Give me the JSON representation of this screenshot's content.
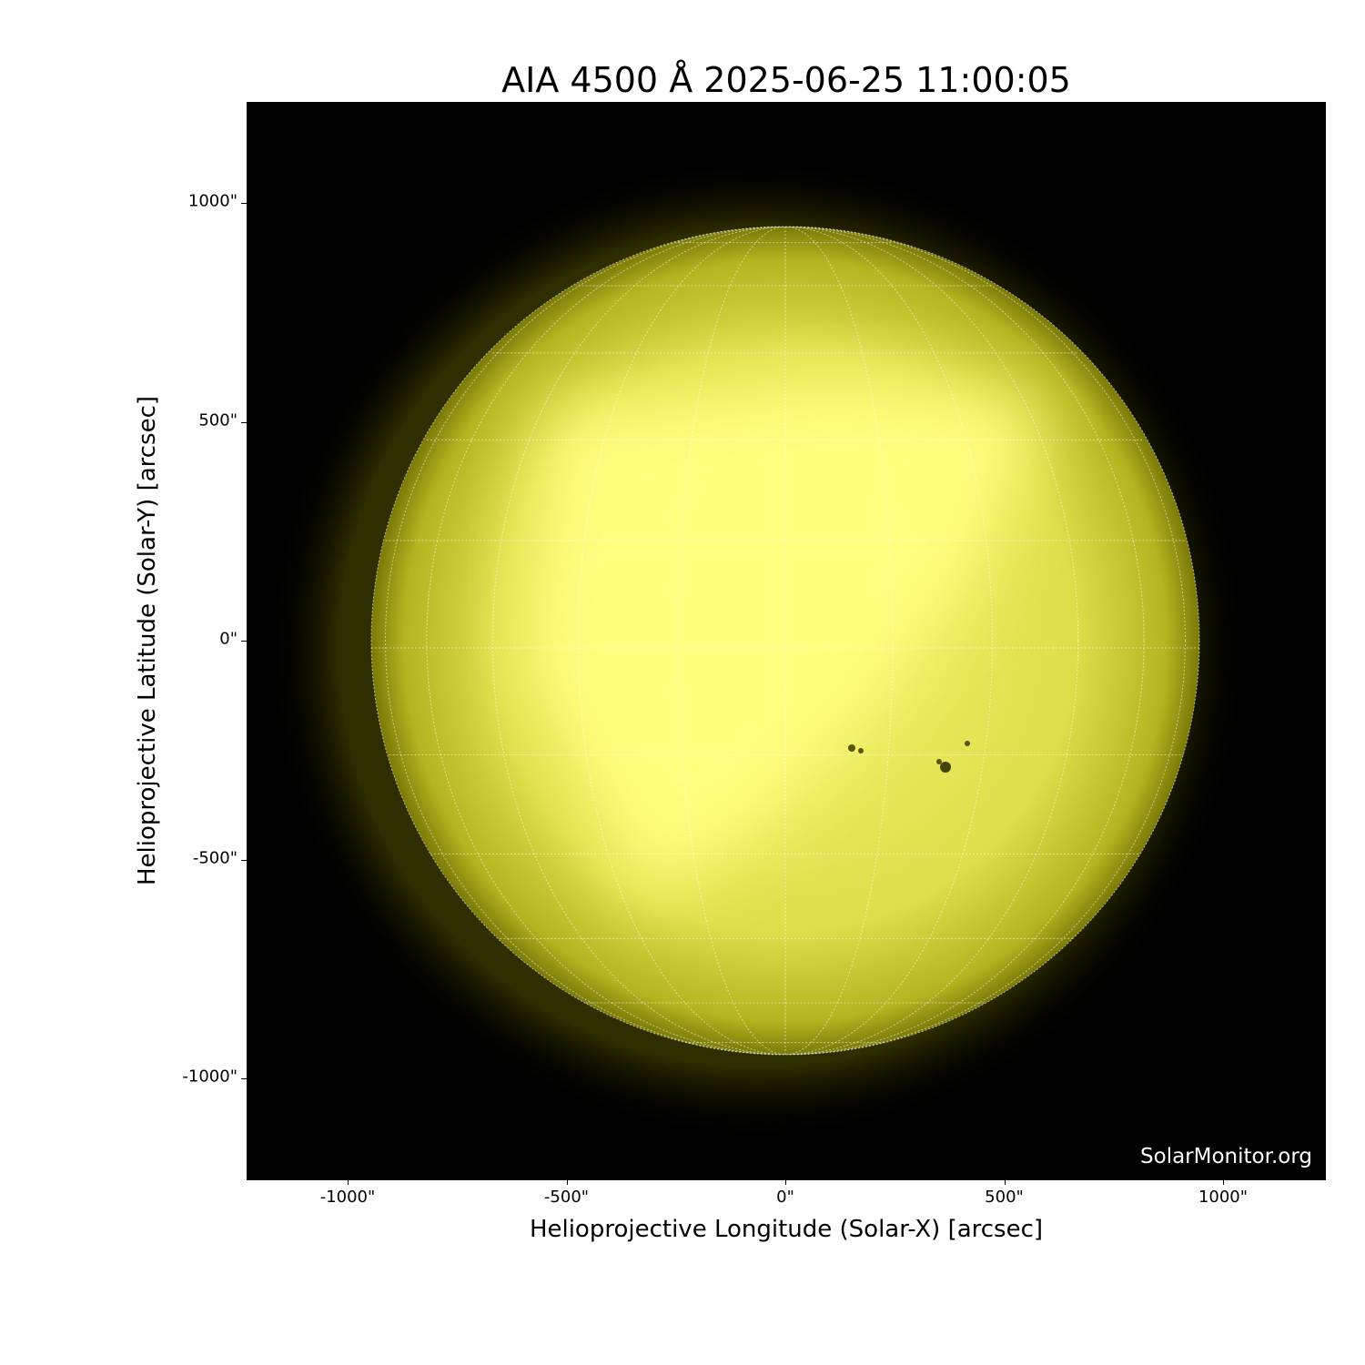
{
  "title": "AIA 4500 Å 2025-06-25 11:00:05",
  "watermark": "SolarMonitor.org",
  "xaxis": {
    "label": "Helioprojective Longitude (Solar-X) [arcsec]",
    "ticks": [
      "-1000\"",
      "-500\"",
      "0\"",
      "500\"",
      "1000\""
    ],
    "tick_values": [
      -1000,
      -500,
      0,
      500,
      1000
    ],
    "range": [
      -1230,
      1230
    ]
  },
  "yaxis": {
    "label": "Helioprojective Latitude (Solar-Y) [arcsec]",
    "ticks": [
      "1000\"",
      "500\"",
      "0\"",
      "-500\"",
      "-1000\""
    ],
    "tick_values": [
      1000,
      500,
      0,
      -500,
      -1000
    ],
    "range": [
      -1230,
      1230
    ]
  },
  "image": {
    "colormap_color": "#ffff80",
    "background": "#000000",
    "solar_radius_arcsec": 946,
    "grid": "heliographic, dotted, 15° spacing"
  }
}
